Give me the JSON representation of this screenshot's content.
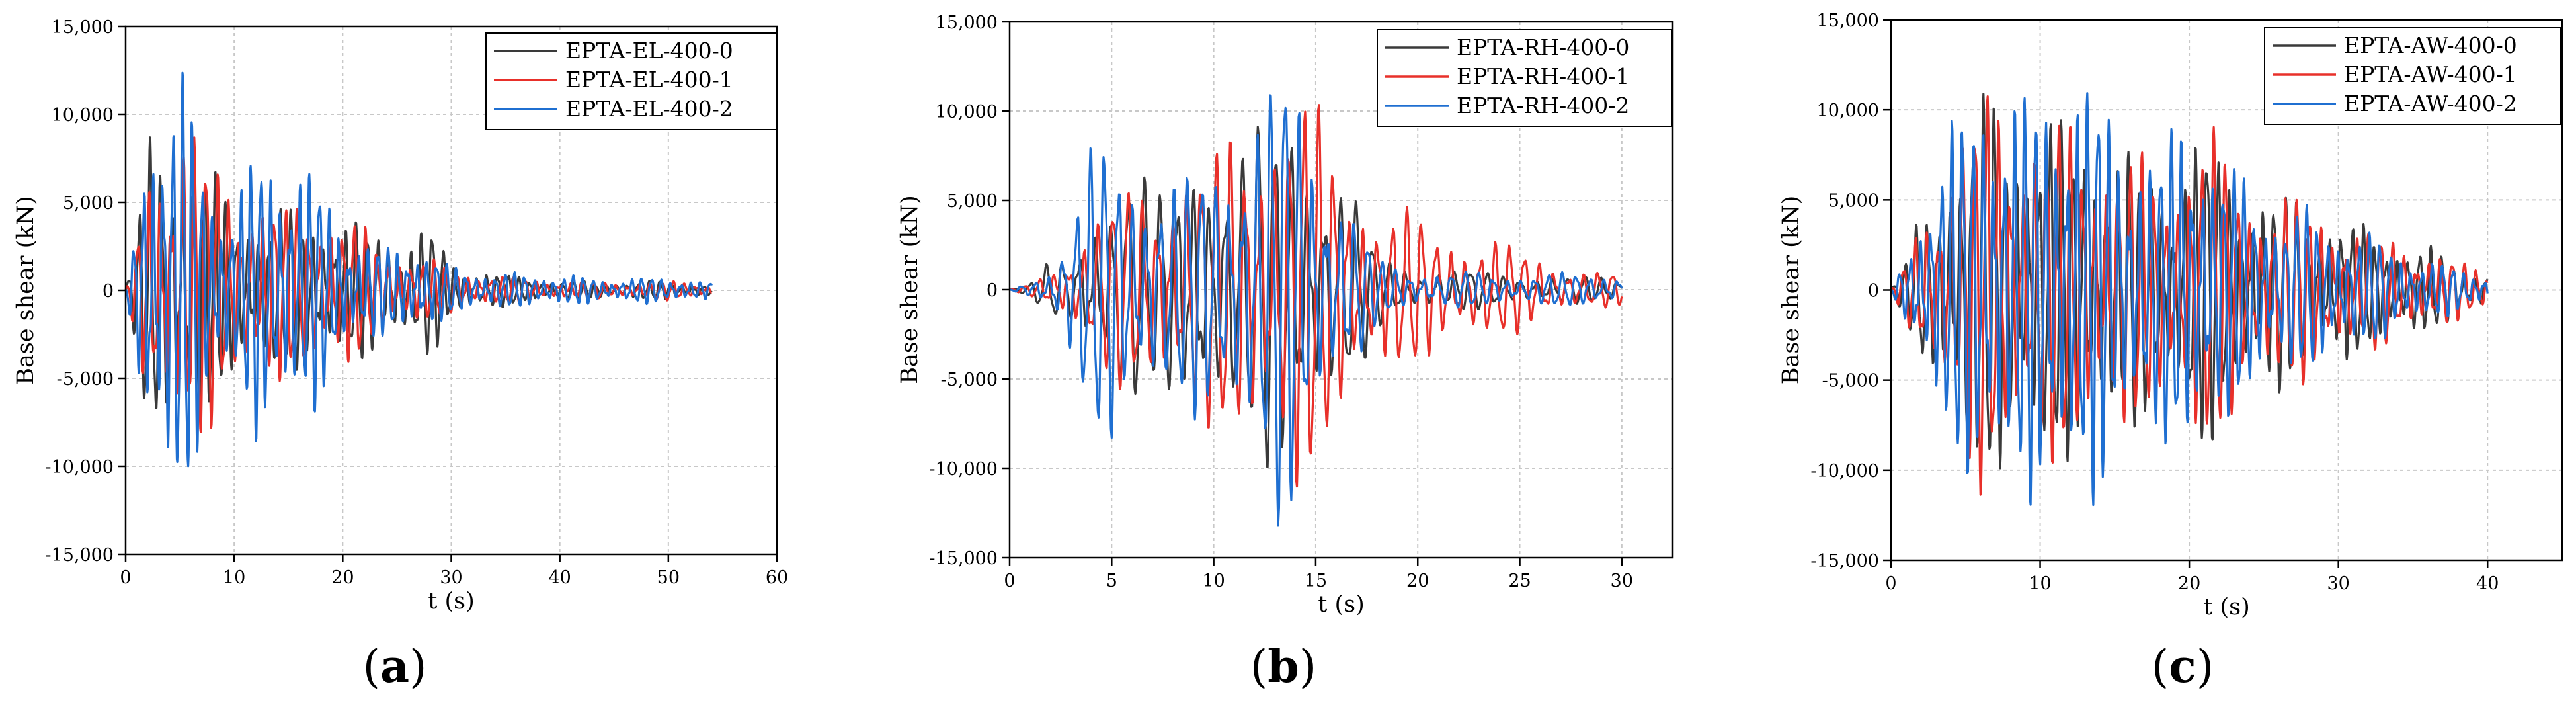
{
  "chart_data": [
    {
      "type": "line",
      "panel_label": "a",
      "xlabel": "t (s)",
      "ylabel": "Base shear (kN)",
      "xlim": [
        0,
        60
      ],
      "ylim": [
        -15000,
        15000
      ],
      "xticks": [
        0,
        10,
        20,
        30,
        40,
        50,
        60
      ],
      "xtick_labels": [
        "0",
        "10",
        "20",
        "30",
        "40",
        "50",
        "60"
      ],
      "yticks": [
        -15000,
        -10000,
        -5000,
        0,
        5000,
        10000,
        15000
      ],
      "ytick_labels": [
        "-15,000",
        "-10,000",
        "-5,000",
        "0",
        "5,000",
        "10,000",
        "15,000"
      ],
      "grid": true,
      "legend_position": "top-right",
      "series": [
        {
          "name": "EPTA-EL-400-0",
          "color": "#3a3a3a",
          "duration": 54,
          "period": 1.0,
          "envelope": [
            [
              0,
              0
            ],
            [
              1,
              3000
            ],
            [
              2,
              7500
            ],
            [
              3,
              8200
            ],
            [
              5,
              7800
            ],
            [
              6,
              8300
            ],
            [
              8,
              6000
            ],
            [
              10,
              4500
            ],
            [
              12,
              4500
            ],
            [
              15,
              4200
            ],
            [
              18,
              4000
            ],
            [
              20,
              3800
            ],
            [
              23,
              3200
            ],
            [
              26,
              3000
            ],
            [
              28,
              3500
            ],
            [
              30,
              1500
            ],
            [
              35,
              800
            ],
            [
              40,
              500
            ],
            [
              45,
              400
            ],
            [
              50,
              500
            ],
            [
              54,
              300
            ]
          ]
        },
        {
          "name": "EPTA-EL-400-1",
          "color": "#e8302a",
          "duration": 54,
          "period": 1.05,
          "envelope": [
            [
              0,
              0
            ],
            [
              1,
              2500
            ],
            [
              2,
              6000
            ],
            [
              4,
              8000
            ],
            [
              5.5,
              10800
            ],
            [
              7,
              7500
            ],
            [
              9,
              6000
            ],
            [
              11,
              5800
            ],
            [
              13,
              5000
            ],
            [
              15,
              4200
            ],
            [
              17,
              4800
            ],
            [
              19,
              4500
            ],
            [
              21,
              3800
            ],
            [
              23,
              2500
            ],
            [
              26,
              2000
            ],
            [
              30,
              1200
            ],
            [
              35,
              700
            ],
            [
              40,
              500
            ],
            [
              45,
              400
            ],
            [
              50,
              500
            ],
            [
              54,
              300
            ]
          ]
        },
        {
          "name": "EPTA-EL-400-2",
          "color": "#1f6fd1",
          "duration": 54,
          "period": 0.9,
          "envelope": [
            [
              0,
              0
            ],
            [
              1,
              4000
            ],
            [
              2,
              11000
            ],
            [
              3,
              10500
            ],
            [
              5,
              11000
            ],
            [
              6,
              10000
            ],
            [
              8,
              6000
            ],
            [
              10,
              4500
            ],
            [
              12,
              7500
            ],
            [
              15,
              7600
            ],
            [
              17,
              6500
            ],
            [
              19,
              4500
            ],
            [
              21,
              3000
            ],
            [
              24,
              2200
            ],
            [
              27,
              2500
            ],
            [
              30,
              1200
            ],
            [
              35,
              900
            ],
            [
              40,
              800
            ],
            [
              45,
              600
            ],
            [
              50,
              700
            ],
            [
              54,
              400
            ]
          ]
        }
      ]
    },
    {
      "type": "line",
      "panel_label": "b",
      "xlabel": "t (s)",
      "ylabel": "Base shear (kN)",
      "xlim": [
        0,
        32.5
      ],
      "ylim": [
        -15000,
        15000
      ],
      "xticks": [
        0,
        5,
        10,
        15,
        20,
        25,
        30
      ],
      "xtick_labels": [
        "0",
        "5",
        "10",
        "15",
        "20",
        "25",
        "30"
      ],
      "yticks": [
        -15000,
        -10000,
        -5000,
        0,
        5000,
        10000,
        15000
      ],
      "ytick_labels": [
        "-15,000",
        "-10,000",
        "-5,000",
        "0",
        "5,000",
        "10,000",
        "15,000"
      ],
      "grid": true,
      "legend_position": "top-right",
      "series": [
        {
          "name": "EPTA-RH-400-0",
          "color": "#3a3a3a",
          "duration": 30,
          "period": 0.8,
          "envelope": [
            [
              0,
              0
            ],
            [
              1,
              300
            ],
            [
              2,
              1500
            ],
            [
              3,
              2000
            ],
            [
              4,
              4500
            ],
            [
              5,
              5500
            ],
            [
              6,
              6000
            ],
            [
              7,
              5000
            ],
            [
              8,
              6000
            ],
            [
              9.3,
              9800
            ],
            [
              10,
              7000
            ],
            [
              11,
              6000
            ],
            [
              12,
              8000
            ],
            [
              13,
              10000
            ],
            [
              14,
              11000
            ],
            [
              15,
              7500
            ],
            [
              16,
              6000
            ],
            [
              17,
              4500
            ],
            [
              18,
              2000
            ],
            [
              20,
              1200
            ],
            [
              25,
              800
            ],
            [
              30,
              600
            ]
          ]
        },
        {
          "name": "EPTA-RH-400-1",
          "color": "#e8302a",
          "duration": 30,
          "period": 0.72,
          "envelope": [
            [
              0,
              0
            ],
            [
              1,
              300
            ],
            [
              2,
              1000
            ],
            [
              4,
              3500
            ],
            [
              6,
              5500
            ],
            [
              8,
              6500
            ],
            [
              10,
              7000
            ],
            [
              12,
              9500
            ],
            [
              14,
              11000
            ],
            [
              16,
              7500
            ],
            [
              18,
              4500
            ],
            [
              20,
              3800
            ],
            [
              22,
              3000
            ],
            [
              24,
              2500
            ],
            [
              26,
              1800
            ],
            [
              28,
              1000
            ],
            [
              30,
              800
            ]
          ]
        },
        {
          "name": "EPTA-RH-400-2",
          "color": "#1f6fd1",
          "duration": 30,
          "period": 0.68,
          "envelope": [
            [
              0,
              0
            ],
            [
              1,
              400
            ],
            [
              2,
              1200
            ],
            [
              3,
              4000
            ],
            [
              4,
              7000
            ],
            [
              5,
              8000
            ],
            [
              6,
              7000
            ],
            [
              8,
              5500
            ],
            [
              10,
              7000
            ],
            [
              12,
              10000
            ],
            [
              13.5,
              12000
            ],
            [
              15,
              8000
            ],
            [
              16,
              6000
            ],
            [
              17,
              4000
            ],
            [
              18,
              1500
            ],
            [
              20,
              1000
            ],
            [
              25,
              800
            ],
            [
              30,
              900
            ]
          ]
        }
      ]
    },
    {
      "type": "line",
      "panel_label": "c",
      "xlabel": "t (s)",
      "ylabel": "Base shear (kN)",
      "xlim": [
        0,
        45
      ],
      "ylim": [
        -15000,
        15000
      ],
      "xticks": [
        0,
        10,
        20,
        30,
        40
      ],
      "xtick_labels": [
        "0",
        "10",
        "20",
        "30",
        "40"
      ],
      "yticks": [
        -15000,
        -10000,
        -5000,
        0,
        5000,
        10000,
        15000
      ],
      "ytick_labels": [
        "-15,000",
        "-10,000",
        "-5,000",
        "0",
        "5,000",
        "10,000",
        "15,000"
      ],
      "grid": true,
      "legend_position": "top-right",
      "series": [
        {
          "name": "EPTA-AW-400-0",
          "color": "#3a3a3a",
          "duration": 40,
          "period": 0.75,
          "envelope": [
            [
              0,
              0
            ],
            [
              1,
              1500
            ],
            [
              2,
              4000
            ],
            [
              4,
              7000
            ],
            [
              6,
              9000
            ],
            [
              7,
              10500
            ],
            [
              9,
              9000
            ],
            [
              11,
              8500
            ],
            [
              13,
              9000
            ],
            [
              15,
              7500
            ],
            [
              17,
              6500
            ],
            [
              19,
              6000
            ],
            [
              20,
              8500
            ],
            [
              22,
              7000
            ],
            [
              24,
              5500
            ],
            [
              26,
              5000
            ],
            [
              28,
              4500
            ],
            [
              30,
              4000
            ],
            [
              32,
              3000
            ],
            [
              35,
              2500
            ],
            [
              38,
              1500
            ],
            [
              40,
              1000
            ]
          ]
        },
        {
          "name": "EPTA-AW-400-1",
          "color": "#e8302a",
          "duration": 40,
          "period": 0.8,
          "envelope": [
            [
              0,
              0
            ],
            [
              1,
              1500
            ],
            [
              2,
              4000
            ],
            [
              4,
              7000
            ],
            [
              6,
              10000
            ],
            [
              7,
              11000
            ],
            [
              9,
              9000
            ],
            [
              11,
              8500
            ],
            [
              13,
              9000
            ],
            [
              15,
              7500
            ],
            [
              17,
              6500
            ],
            [
              19,
              6000
            ],
            [
              20,
              9000
            ],
            [
              22,
              7500
            ],
            [
              24,
              5500
            ],
            [
              26,
              5000
            ],
            [
              28,
              4500
            ],
            [
              30,
              4000
            ],
            [
              32,
              3000
            ],
            [
              35,
              2500
            ],
            [
              38,
              1500
            ],
            [
              40,
              1000
            ]
          ]
        },
        {
          "name": "EPTA-AW-400-2",
          "color": "#1f6fd1",
          "duration": 40,
          "period": 0.7,
          "envelope": [
            [
              0,
              0
            ],
            [
              1,
              2000
            ],
            [
              2,
              4500
            ],
            [
              4,
              8000
            ],
            [
              5,
              9500
            ],
            [
              6,
              13000
            ],
            [
              8,
              9500
            ],
            [
              10,
              11000
            ],
            [
              12,
              12000
            ],
            [
              14,
              10000
            ],
            [
              16,
              8500
            ],
            [
              18,
              7000
            ],
            [
              20,
              10000
            ],
            [
              22,
              7000
            ],
            [
              24,
              5500
            ],
            [
              26,
              4500
            ],
            [
              28,
              4000
            ],
            [
              30,
              3500
            ],
            [
              33,
              2500
            ],
            [
              36,
              1500
            ],
            [
              40,
              800
            ]
          ]
        }
      ]
    }
  ]
}
